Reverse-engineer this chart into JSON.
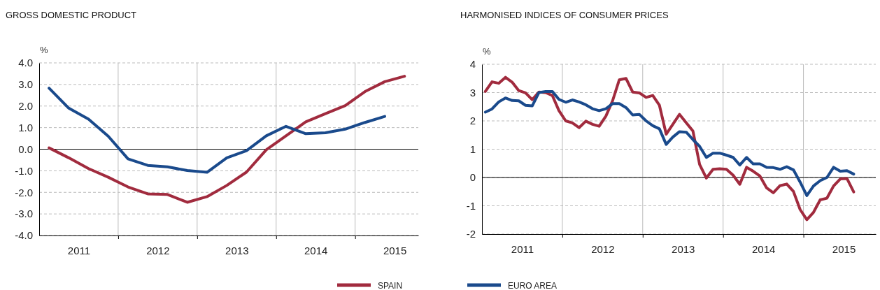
{
  "chart_data": [
    {
      "type": "line",
      "title": "GROSS DOMESTIC PRODUCT",
      "ylabel": "%",
      "xlim": [
        2011,
        2015.8
      ],
      "xticks": [
        {
          "value": 2011.5,
          "label": "2011"
        },
        {
          "value": 2012,
          "label": null
        },
        {
          "value": 2012.5,
          "label": "2012"
        },
        {
          "value": 2013,
          "label": null
        },
        {
          "value": 2013.5,
          "label": "2013"
        },
        {
          "value": 2014,
          "label": null
        },
        {
          "value": 2014.5,
          "label": "2014"
        },
        {
          "value": 2015,
          "label": null
        },
        {
          "value": 2015.5,
          "label": "2015"
        }
      ],
      "ylim": [
        -4,
        4
      ],
      "yticks": [
        {
          "value": -4,
          "label": "-4.0"
        },
        {
          "value": -3,
          "label": "-3.0"
        },
        {
          "value": -2,
          "label": "-2.0"
        },
        {
          "value": -1,
          "label": "-1.0"
        },
        {
          "value": 0,
          "label": "0.0"
        },
        {
          "value": 1,
          "label": "1.0"
        },
        {
          "value": 2,
          "label": "2.0"
        },
        {
          "value": 3,
          "label": "3.0"
        },
        {
          "value": 4,
          "label": "4.0"
        }
      ],
      "grid": true,
      "legend": "bottom",
      "line_style": "solid",
      "ref_lines": [
        {
          "axis": "y",
          "value": 0,
          "color": "#000000"
        }
      ],
      "x": [
        2011.125,
        2011.375,
        2011.625,
        2011.875,
        2012.125,
        2012.375,
        2012.625,
        2012.875,
        2013.125,
        2013.375,
        2013.625,
        2013.875,
        2014.125,
        2014.375,
        2014.625,
        2014.875,
        2015.125,
        2015.375,
        2015.625
      ],
      "series": [
        {
          "name": "SPAIN",
          "color": "#a12b3e",
          "values": [
            0.06,
            -0.4,
            -0.9,
            -1.3,
            -1.75,
            -2.07,
            -2.1,
            -2.46,
            -2.2,
            -1.68,
            -1.06,
            -0.03,
            0.62,
            1.27,
            1.65,
            2.02,
            2.67,
            3.13,
            3.38
          ]
        },
        {
          "name": "EURO AREA",
          "color": "#1a4a8c",
          "values": [
            2.83,
            1.9,
            1.39,
            0.6,
            -0.45,
            -0.75,
            -0.82,
            -0.99,
            -1.07,
            -0.4,
            -0.07,
            0.62,
            1.06,
            0.72,
            0.76,
            0.93,
            1.24,
            1.52,
            null
          ]
        }
      ]
    },
    {
      "type": "line",
      "title": "HARMONISED INDICES OF CONSUMER PRICES",
      "ylabel": "%",
      "xlim": [
        2011,
        2015.9
      ],
      "xticks": [
        {
          "value": 2011.5,
          "label": "2011"
        },
        {
          "value": 2012,
          "label": null
        },
        {
          "value": 2012.5,
          "label": "2012"
        },
        {
          "value": 2013,
          "label": null
        },
        {
          "value": 2013.5,
          "label": "2013"
        },
        {
          "value": 2014,
          "label": null
        },
        {
          "value": 2014.5,
          "label": "2014"
        },
        {
          "value": 2015,
          "label": null
        },
        {
          "value": 2015.5,
          "label": "2015"
        }
      ],
      "ylim": [
        -2,
        4
      ],
      "yticks": [
        -2,
        -1,
        0,
        1,
        2,
        3,
        4
      ],
      "grid": true,
      "legend": "bottom",
      "line_style": "solid",
      "ref_lines": [
        {
          "axis": "y",
          "value": 0,
          "color": "#000000"
        }
      ],
      "x": [
        2011.042,
        2011.125,
        2011.208,
        2011.292,
        2011.375,
        2011.458,
        2011.542,
        2011.625,
        2011.708,
        2011.792,
        2011.875,
        2011.958,
        2012.042,
        2012.125,
        2012.208,
        2012.292,
        2012.375,
        2012.458,
        2012.542,
        2012.625,
        2012.708,
        2012.792,
        2012.875,
        2012.958,
        2013.042,
        2013.125,
        2013.208,
        2013.292,
        2013.375,
        2013.458,
        2013.542,
        2013.625,
        2013.708,
        2013.792,
        2013.875,
        2013.958,
        2014.042,
        2014.125,
        2014.208,
        2014.292,
        2014.375,
        2014.458,
        2014.542,
        2014.625,
        2014.708,
        2014.792,
        2014.875,
        2014.958,
        2015.042,
        2015.125,
        2015.208,
        2015.292,
        2015.375,
        2015.458,
        2015.542,
        2015.625
      ],
      "series": [
        {
          "name": "SPAIN",
          "color": "#a12b3e",
          "values": [
            3.04,
            3.38,
            3.33,
            3.54,
            3.37,
            3.07,
            2.99,
            2.75,
            3.02,
            3.0,
            2.9,
            2.36,
            2.0,
            1.93,
            1.76,
            1.99,
            1.88,
            1.81,
            2.17,
            2.71,
            3.45,
            3.5,
            3.02,
            2.99,
            2.83,
            2.9,
            2.55,
            1.53,
            1.88,
            2.23,
            1.93,
            1.64,
            0.46,
            -0.02,
            0.29,
            0.31,
            0.29,
            0.08,
            -0.24,
            0.36,
            0.22,
            0.05,
            -0.37,
            -0.54,
            -0.29,
            -0.23,
            -0.49,
            -1.13,
            -1.49,
            -1.23,
            -0.79,
            -0.73,
            -0.3,
            -0.05,
            -0.04,
            -0.51
          ]
        },
        {
          "name": "EURO AREA",
          "color": "#1a4a8c",
          "values": [
            2.31,
            2.42,
            2.67,
            2.81,
            2.72,
            2.71,
            2.55,
            2.53,
            3.0,
            3.04,
            3.04,
            2.76,
            2.66,
            2.74,
            2.67,
            2.57,
            2.43,
            2.36,
            2.43,
            2.61,
            2.61,
            2.47,
            2.21,
            2.23,
            2.0,
            1.83,
            1.72,
            1.17,
            1.43,
            1.62,
            1.6,
            1.34,
            1.1,
            0.71,
            0.86,
            0.86,
            0.79,
            0.71,
            0.44,
            0.71,
            0.48,
            0.48,
            0.36,
            0.35,
            0.29,
            0.38,
            0.27,
            -0.16,
            -0.64,
            -0.3,
            -0.11,
            0.0,
            0.36,
            0.22,
            0.24,
            0.12
          ]
        }
      ]
    }
  ]
}
